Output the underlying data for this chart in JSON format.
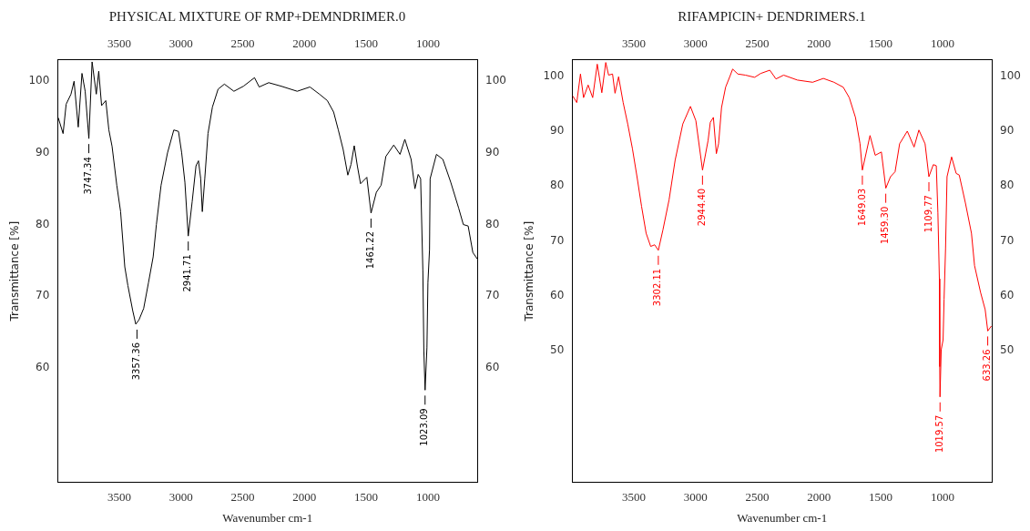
{
  "chart_data": [
    {
      "type": "line",
      "title": "PHYSICAL MIXTURE OF RMP+DEMNDRIMER.0",
      "xlabel": "Wavenumber cm-1",
      "ylabel": "Transmittance [%]",
      "marker": "none",
      "xlim": [
        4000,
        600
      ],
      "xticks": [
        3500,
        3000,
        2500,
        2000,
        1500,
        1000
      ],
      "x2lim": [
        4000,
        600
      ],
      "x2ticks": [
        3500,
        3000,
        2500,
        2000,
        1500,
        1000
      ],
      "ylim": [
        44,
        103
      ],
      "yticks": [
        60,
        70,
        80,
        90,
        100
      ],
      "y2lim": [
        44,
        103
      ],
      "y2ticks": [
        60,
        70,
        80,
        90,
        100
      ],
      "series": [
        {
          "color": "#000000",
          "x": [
            3995,
            3956,
            3931,
            3892,
            3867,
            3833,
            3803,
            3777,
            3747,
            3721,
            3687,
            3667,
            3644,
            3610,
            3585,
            3559,
            3521,
            3490,
            3456,
            3431,
            3392,
            3367,
            3341,
            3303,
            3264,
            3226,
            3200,
            3162,
            3110,
            3059,
            3021,
            2995,
            2969,
            2942,
            2910,
            2879,
            2859,
            2841,
            2828,
            2808,
            2782,
            2746,
            2700,
            2649,
            2572,
            2495,
            2405,
            2367,
            2290,
            2187,
            2059,
            1956,
            1879,
            1815,
            1764,
            1726,
            1687,
            1649,
            1623,
            1597,
            1572,
            1546,
            1495,
            1461,
            1418,
            1379,
            1341,
            1277,
            1226,
            1187,
            1136,
            1105,
            1079,
            1059,
            1041,
            1033,
            1023,
            1008,
            1000,
            987,
            982,
            931,
            879,
            815,
            751,
            713,
            674,
            636,
            600
          ],
          "values": [
            94.9,
            92.7,
            96.8,
            98.2,
            100,
            93.6,
            101.1,
            98.6,
            92,
            102.7,
            98.2,
            101.4,
            96.6,
            97.3,
            93.2,
            90.9,
            85.5,
            81.8,
            74.1,
            71.5,
            68,
            66.1,
            66.7,
            68.3,
            71.9,
            75.5,
            80,
            85.5,
            90,
            93.2,
            93,
            90,
            85.9,
            78.4,
            83.2,
            88.2,
            88.9,
            86.4,
            81.8,
            86.4,
            92.7,
            96.4,
            98.9,
            99.6,
            98.6,
            99.3,
            100.5,
            99.2,
            99.8,
            99.3,
            98.6,
            99.2,
            98.2,
            97.3,
            95.7,
            93.2,
            90.5,
            86.9,
            88.4,
            91,
            88.2,
            85.7,
            86.6,
            81.6,
            84.5,
            85.5,
            89.5,
            91.1,
            89.8,
            91.9,
            89.1,
            85,
            87,
            86.4,
            73.6,
            62.4,
            56.9,
            62.8,
            71.9,
            76.5,
            86.4,
            89.8,
            89.1,
            85.9,
            82.3,
            80,
            79.8,
            76.1,
            75.2
          ]
        }
      ],
      "annotations": [
        {
          "text": "3747.34",
          "x": 3747.34,
          "y": 92
        },
        {
          "text": "3357.36",
          "x": 3357.36,
          "y": 66.1
        },
        {
          "text": "2941.71",
          "x": 2941.71,
          "y": 78.4
        },
        {
          "text": "1461.22",
          "x": 1461.22,
          "y": 81.6
        },
        {
          "text": "1023.09",
          "x": 1023.09,
          "y": 56.9
        }
      ]
    },
    {
      "type": "line",
      "title": "RIFAMPICIN+ DENDRIMERS.1",
      "xlabel": "Wavenumber cm-1",
      "ylabel": "Transmittance [%]",
      "marker": "none",
      "xlim": [
        4000,
        600
      ],
      "xticks": [
        3500,
        3000,
        2500,
        2000,
        1500,
        1000
      ],
      "x2lim": [
        4000,
        600
      ],
      "x2ticks": [
        3500,
        3000,
        2500,
        2000,
        1500,
        1000
      ],
      "ylim": [
        26,
        103
      ],
      "yticks": [
        50,
        60,
        70,
        80,
        90,
        100
      ],
      "y2lim": [
        26,
        103
      ],
      "y2ticks": [
        50,
        60,
        70,
        80,
        90,
        100
      ],
      "series": [
        {
          "color": "#ff0000",
          "x": [
            3995,
            3963,
            3933,
            3908,
            3871,
            3834,
            3797,
            3760,
            3728,
            3705,
            3673,
            3653,
            3624,
            3587,
            3550,
            3512,
            3475,
            3438,
            3401,
            3364,
            3332,
            3302,
            3265,
            3215,
            3166,
            3104,
            3042,
            2998,
            2944,
            2899,
            2881,
            2856,
            2832,
            2814,
            2790,
            2757,
            2720,
            2700,
            2658,
            2597,
            2522,
            2473,
            2399,
            2349,
            2287,
            2176,
            2052,
            1965,
            1879,
            1804,
            1755,
            1705,
            1668,
            1649,
            1587,
            1545,
            1495,
            1459,
            1421,
            1384,
            1347,
            1285,
            1230,
            1191,
            1141,
            1110,
            1074,
            1050,
            1037,
            1025,
            1022,
            1020,
            1010,
            995,
            987,
            975,
            963,
            926,
            889,
            864,
            814,
            765,
            740,
            691,
            654,
            633,
            604
          ],
          "values": [
            96.4,
            95.2,
            100.4,
            96.1,
            98.4,
            96.1,
            102.2,
            97,
            102.5,
            100.2,
            100.4,
            96.9,
            99.9,
            95.2,
            91.3,
            86.8,
            81.7,
            76.3,
            71.4,
            69,
            69.3,
            68.3,
            72,
            77.5,
            84.7,
            91.3,
            94.5,
            91.9,
            82.9,
            88.3,
            91.6,
            92.5,
            85.9,
            87.7,
            94.3,
            98,
            100.1,
            101.3,
            100.4,
            100.2,
            99.8,
            100.5,
            101.1,
            99.5,
            100.2,
            99.3,
            98.9,
            99.6,
            98.9,
            98,
            96.1,
            92.5,
            87.7,
            82.9,
            89.2,
            85.6,
            86.2,
            79.6,
            81.7,
            82.6,
            87.7,
            90,
            87.1,
            90.2,
            87.7,
            81.7,
            83.9,
            83.7,
            75.1,
            63.1,
            47.1,
            41.6,
            50.2,
            52,
            59.4,
            68.6,
            81.7,
            85.3,
            82.3,
            82,
            76.9,
            71.4,
            65.5,
            60.6,
            57.5,
            53.6,
            54.5
          ]
        }
      ],
      "annotations": [
        {
          "text": "3302.11",
          "x": 3302.11,
          "y": 68.3
        },
        {
          "text": "2944.40",
          "x": 2944.4,
          "y": 82.9
        },
        {
          "text": "1649.03",
          "x": 1649.03,
          "y": 82.9
        },
        {
          "text": "1459.30",
          "x": 1459.3,
          "y": 79.6
        },
        {
          "text": "1109.77",
          "x": 1109.77,
          "y": 81.7
        },
        {
          "text": "1019.57",
          "x": 1019.57,
          "y": 41.6
        },
        {
          "text": "633.26",
          "x": 633.26,
          "y": 53.6
        }
      ]
    }
  ]
}
